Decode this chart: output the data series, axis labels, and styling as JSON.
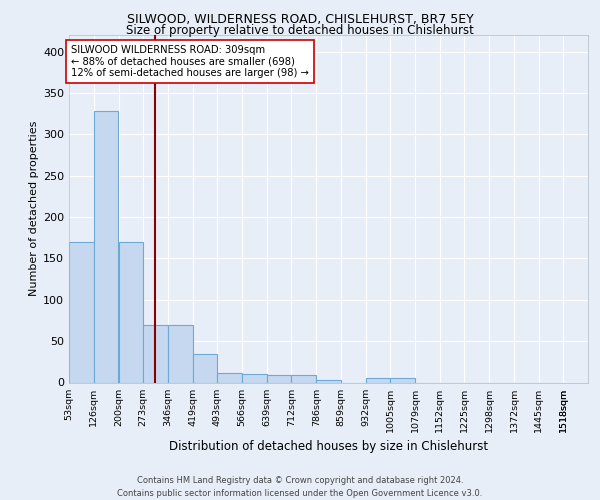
{
  "title1": "SILWOOD, WILDERNESS ROAD, CHISLEHURST, BR7 5EY",
  "title2": "Size of property relative to detached houses in Chislehurst",
  "xlabel": "Distribution of detached houses by size in Chislehurst",
  "ylabel": "Number of detached properties",
  "bin_labels": [
    "53sqm",
    "126sqm",
    "200sqm",
    "273sqm",
    "346sqm",
    "419sqm",
    "493sqm",
    "566sqm",
    "639sqm",
    "712sqm",
    "786sqm",
    "859sqm",
    "932sqm",
    "1005sqm",
    "1079sqm",
    "1152sqm",
    "1225sqm",
    "1298sqm",
    "1372sqm",
    "1445sqm",
    "1518sqm"
  ],
  "bin_edges": [
    53,
    126,
    200,
    273,
    346,
    419,
    493,
    566,
    639,
    712,
    786,
    859,
    932,
    1005,
    1079,
    1152,
    1225,
    1298,
    1372,
    1445,
    1518
  ],
  "bar_heights": [
    170,
    328,
    170,
    70,
    70,
    35,
    12,
    10,
    9,
    9,
    3,
    0,
    5,
    5,
    0,
    0,
    0,
    0,
    0,
    0
  ],
  "bar_color": "#c5d8f0",
  "bar_edge_color": "#6aaad4",
  "vline_x": 309,
  "vline_color": "#8b0000",
  "annotation_text": "SILWOOD WILDERNESS ROAD: 309sqm\n← 88% of detached houses are smaller (698)\n12% of semi-detached houses are larger (98) →",
  "ylim": [
    0,
    420
  ],
  "yticks": [
    0,
    50,
    100,
    150,
    200,
    250,
    300,
    350,
    400
  ],
  "footer": "Contains HM Land Registry data © Crown copyright and database right 2024.\nContains public sector information licensed under the Open Government Licence v3.0.",
  "bg_color": "#e8eef8",
  "plot_bg_color": "#e8eef8",
  "grid_color": "#ffffff"
}
